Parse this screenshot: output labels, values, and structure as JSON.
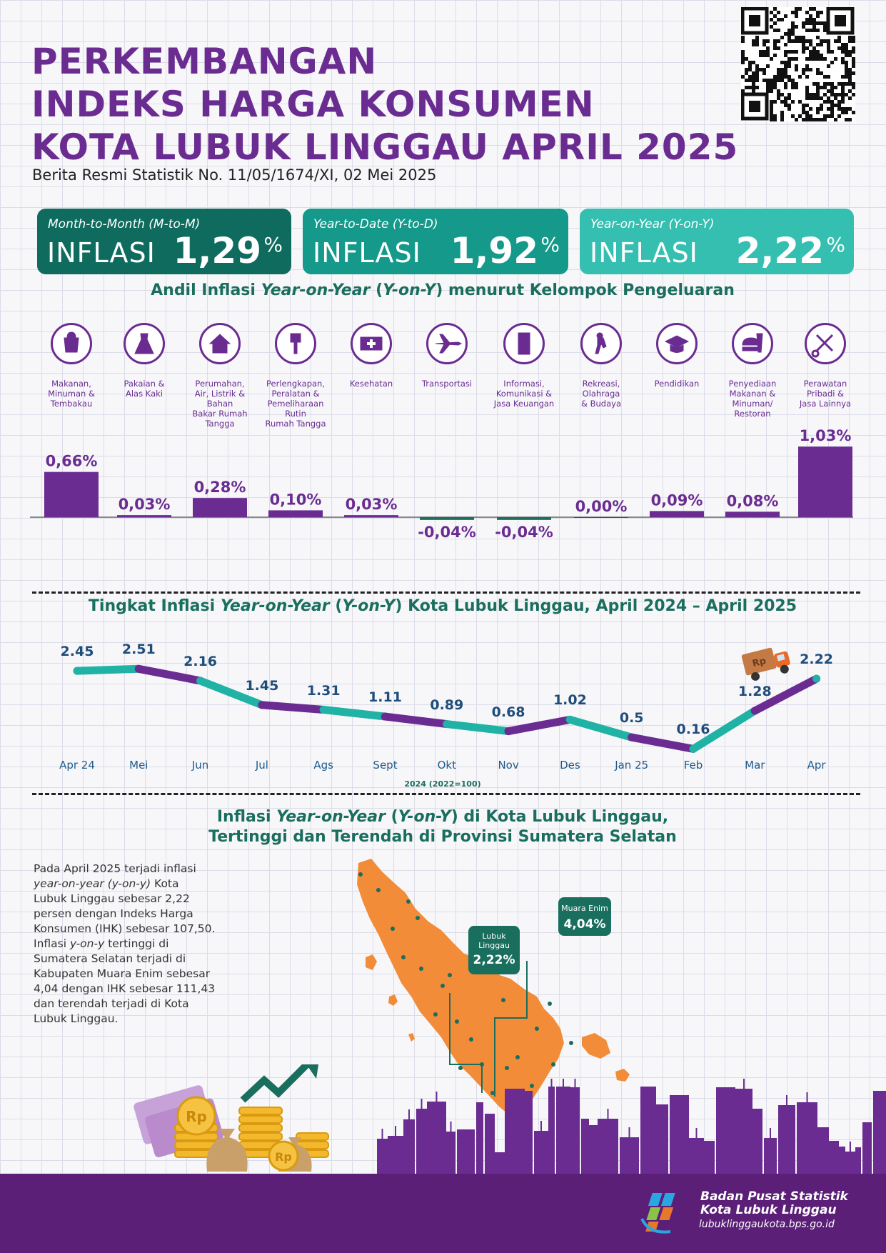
{
  "header": {
    "title_lines": [
      "PERKEMBANGAN",
      "INDEKS HARGA KONSUMEN",
      "KOTA LUBUK LINGGAU APRIL 2025"
    ],
    "subtitle": "Berita Resmi Statistik No. 11/05/1674/XI, 02 Mei 2025"
  },
  "cards": [
    {
      "label": "Month-to-Month (M-to-M)",
      "word": "INFLASI",
      "value": "1,29",
      "unit": "%",
      "color": "#0e6b5e"
    },
    {
      "label": "Year-to-Date (Y-to-D)",
      "word": "INFLASI",
      "value": "1,92",
      "unit": "%",
      "color": "#15998a"
    },
    {
      "label": "Year-on-Year (Y-on-Y)",
      "word": "INFLASI",
      "value": "2,22",
      "unit": "%",
      "color": "#35bfb0"
    }
  ],
  "sections": {
    "andil": {
      "pre": "Andil Inflasi ",
      "ital1": "Year-on-Year",
      "mid": " (",
      "ital2": "Y-on-Y",
      "post": ") menurut Kelompok Pengeluaran"
    },
    "trend": {
      "pre": "Tingkat Inflasi ",
      "ital1": "Year-on-Year",
      "mid": " (",
      "ital2": "Y-on-Y",
      "post": ") Kota Lubuk Linggau, April 2024 – April 2025"
    },
    "map": {
      "pre": "Inflasi ",
      "ital1": "Year-on-Year",
      "mid": " (",
      "ital2": "Y-on-Y",
      "post": ") di Kota Lubuk Linggau,",
      "line2": "Tertinggi dan Terendah di Provinsi Sumatera Selatan"
    }
  },
  "chart_data": [
    {
      "type": "bar",
      "categories": [
        "Makanan, Minuman & Tembakau",
        "Pakaian & Alas Kaki",
        "Perumahan, Air, Listrik & Bahan Bakar Rumah Tangga",
        "Perlengkapan, Peralatan & Pemeliharaan Rutin Rumah Tangga",
        "Kesehatan",
        "Transportasi",
        "Informasi, Komunikasi & Jasa Keuangan",
        "Rekreasi, Olahraga & Budaya",
        "Pendidikan",
        "Penyediaan Makanan & Minuman/ Restoran",
        "Perawatan Pribadi & Jasa Lainnya"
      ],
      "category_label_lines": [
        [
          "Makanan,",
          "Minuman &",
          "Tembakau"
        ],
        [
          "Pakaian &",
          "Alas Kaki"
        ],
        [
          "Perumahan,",
          "Air, Listrik &",
          "Bahan",
          "Bakar Rumah",
          "Tangga"
        ],
        [
          "Perlengkapan,",
          "Peralatan &",
          "Pemeliharaan",
          "Rutin",
          "Rumah Tangga"
        ],
        [
          "Kesehatan"
        ],
        [
          "Transportasi"
        ],
        [
          "Informasi,",
          "Komunikasi &",
          "Jasa Keuangan"
        ],
        [
          "Rekreasi,",
          "Olahraga",
          "& Budaya"
        ],
        [
          "Pendidikan"
        ],
        [
          "Penyediaan",
          "Makanan &",
          "Minuman/",
          "Restoran"
        ],
        [
          "Perawatan",
          "Pribadi &",
          "Jasa Lainnya"
        ]
      ],
      "icons": [
        "grocery-bag-icon",
        "dress-icon",
        "house-icon",
        "plug-icon",
        "first-aid-icon",
        "airplane-icon",
        "smartphone-icon",
        "football-player-icon",
        "graduation-cap-icon",
        "fast-food-icon",
        "scissors-comb-icon"
      ],
      "values": [
        0.66,
        0.03,
        0.28,
        0.1,
        0.03,
        -0.04,
        -0.04,
        0.0,
        0.09,
        0.08,
        1.03
      ],
      "value_labels": [
        "0,66%",
        "0,03%",
        "0,28%",
        "0,10%",
        "0,03%",
        "-0,04%",
        "-0,04%",
        "0,00%",
        "0,09%",
        "0,08%",
        "1,03%"
      ],
      "colors": {
        "positive": "#6a2c91",
        "negative": "#1a6e5e"
      }
    },
    {
      "type": "line",
      "x": [
        "Apr 24",
        "Mei",
        "Jun",
        "Jul",
        "Ags",
        "Sept",
        "Okt",
        "Nov",
        "Des",
        "Jan 25",
        "Feb",
        "Mar",
        "Apr"
      ],
      "values": [
        2.45,
        2.51,
        2.16,
        1.45,
        1.31,
        1.11,
        0.89,
        0.68,
        1.02,
        0.5,
        0.16,
        1.28,
        2.22
      ],
      "value_labels": [
        "2.45",
        "2.51",
        "2.16",
        "1.45",
        "1.31",
        "1.11",
        "0.89",
        "0.68",
        "1.02",
        "0.5",
        "0.16",
        "1.28",
        "2.22"
      ],
      "note": "2024 (2022=100)",
      "segment_colors": [
        "#20b2a5",
        "#6a2c91"
      ]
    }
  ],
  "paragraph": [
    {
      "t": "Pada April 2025 terjadi inflasi ",
      "i": false
    },
    {
      "t": "year-on-year (y-on-y)",
      "i": true
    },
    {
      "t": " Kota Lubuk Linggau sebesar 2,22 persen dengan Indeks Harga Konsumen (IHK) sebesar 107,50. Inflasi ",
      "i": false
    },
    {
      "t": "y-on-y",
      "i": true
    },
    {
      "t": " tertinggi di Sumatera Selatan terjadi di Kabupaten Muara Enim sebesar 4,04 dengan IHK sebesar 111,43  dan terendah terjadi di Kota Lubuk Linggau.",
      "i": false
    }
  ],
  "map": {
    "callouts": [
      {
        "name": "Lubuk Linggau",
        "name_lines": [
          "Lubuk",
          "Linggau"
        ],
        "value": "2,22%"
      },
      {
        "name": "Muara Enim",
        "name_lines": [
          "Muara Enim"
        ],
        "value": "4,04%"
      }
    ],
    "land_color": "#f28c38"
  },
  "truck": {
    "label": "Rp"
  },
  "money": {
    "coin_label": "Rp"
  },
  "footer": {
    "org_line1": "Badan Pusat Statistik",
    "org_line2": "Kota Lubuk Linggau",
    "url": "lubuklinggaukota.bps.go.id"
  }
}
